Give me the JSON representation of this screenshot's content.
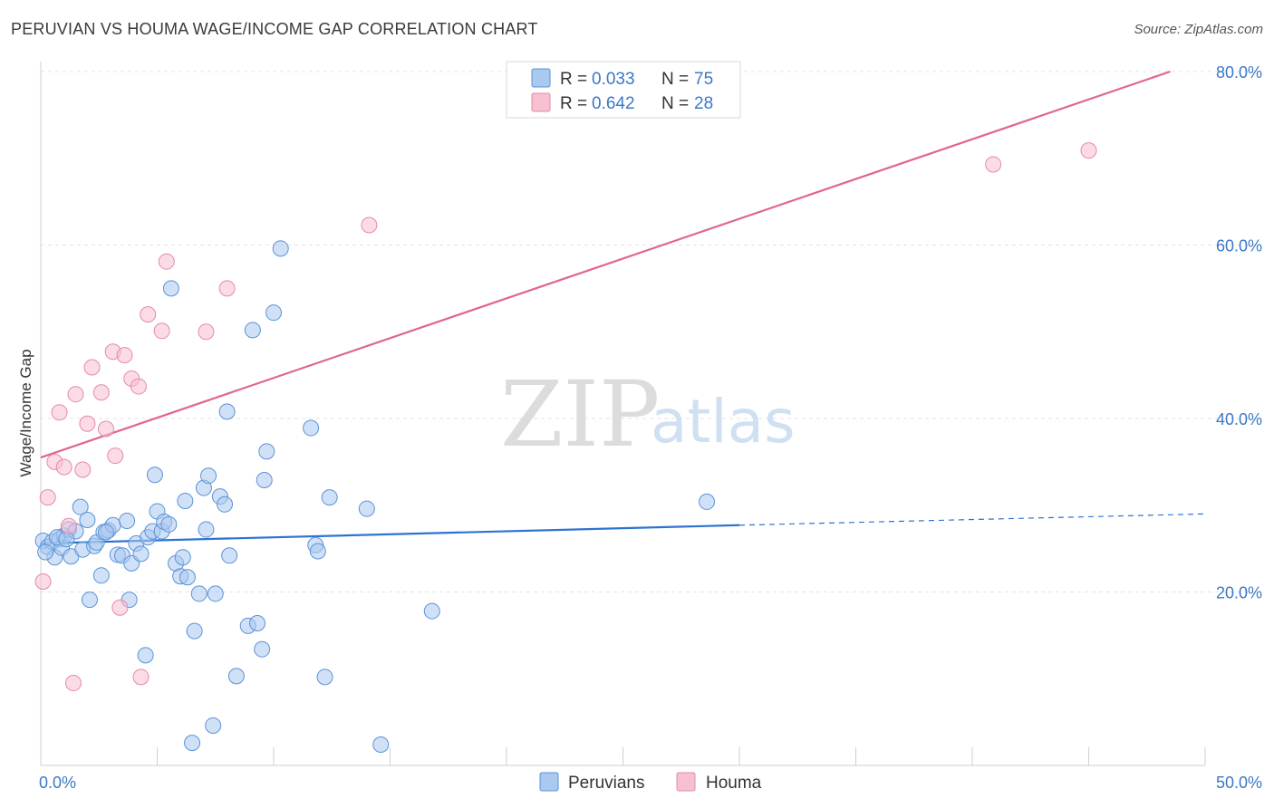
{
  "title": "PERUVIAN VS HOUMA WAGE/INCOME GAP CORRELATION CHART",
  "source": "Source: ZipAtlas.com",
  "watermark": {
    "zip": "ZIP",
    "atlas": "atlas"
  },
  "colors": {
    "peruvians_fill": "#a9c9f1",
    "peruvians_stroke": "#5b93d6",
    "peruvians_line": "#2f73d0",
    "houma_fill": "#f7c0d1",
    "houma_stroke": "#e58aa8",
    "houma_line": "#e06690",
    "tick": "#3b78c7"
  },
  "legend": {
    "entries": [
      {
        "r_label": "R =",
        "r_value": "0.033",
        "n_label": "N =",
        "n_value": "75"
      },
      {
        "r_label": "R =",
        "r_value": "0.642",
        "n_label": "N =",
        "n_value": "28"
      }
    ]
  },
  "bottom_legend": [
    "Peruvians",
    "Houma"
  ],
  "chart_data": {
    "type": "scatter",
    "title": "PERUVIAN VS HOUMA WAGE/INCOME GAP CORRELATION CHART",
    "xlabel": "",
    "ylabel": "Wage/Income Gap",
    "xlim": [
      0,
      50
    ],
    "ylim": [
      0,
      80
    ],
    "x_ticks": [
      "0.0%",
      "50.0%"
    ],
    "y_ticks": [
      "20.0%",
      "40.0%",
      "60.0%",
      "80.0%"
    ],
    "y_tick_values": [
      20,
      40,
      60,
      80
    ],
    "grid": true,
    "legend_position": "top-center",
    "series": [
      {
        "name": "Peruvians",
        "points": [
          [
            0.1,
            25.9
          ],
          [
            0.3,
            25.2
          ],
          [
            0.5,
            25.8
          ],
          [
            0.6,
            24.0
          ],
          [
            0.8,
            26.1
          ],
          [
            0.9,
            25.1
          ],
          [
            1.0,
            26.5
          ],
          [
            1.2,
            27.2
          ],
          [
            1.3,
            24.1
          ],
          [
            1.5,
            27.0
          ],
          [
            1.7,
            29.8
          ],
          [
            1.8,
            24.9
          ],
          [
            2.0,
            28.3
          ],
          [
            2.1,
            19.1
          ],
          [
            2.3,
            25.3
          ],
          [
            2.4,
            25.7
          ],
          [
            2.6,
            21.9
          ],
          [
            2.7,
            26.9
          ],
          [
            2.9,
            27.1
          ],
          [
            3.1,
            27.7
          ],
          [
            3.3,
            24.3
          ],
          [
            3.5,
            24.2
          ],
          [
            3.7,
            28.2
          ],
          [
            3.8,
            19.1
          ],
          [
            3.9,
            23.3
          ],
          [
            4.1,
            25.6
          ],
          [
            4.3,
            24.4
          ],
          [
            4.5,
            12.7
          ],
          [
            4.6,
            26.3
          ],
          [
            4.8,
            27.0
          ],
          [
            4.9,
            33.5
          ],
          [
            5.0,
            29.3
          ],
          [
            5.2,
            27.0
          ],
          [
            5.3,
            28.1
          ],
          [
            5.5,
            27.8
          ],
          [
            5.6,
            55.0
          ],
          [
            5.8,
            23.3
          ],
          [
            6.0,
            21.8
          ],
          [
            6.1,
            24.0
          ],
          [
            6.2,
            30.5
          ],
          [
            6.3,
            21.7
          ],
          [
            6.5,
            2.6
          ],
          [
            6.6,
            15.5
          ],
          [
            6.8,
            19.8
          ],
          [
            7.0,
            32.0
          ],
          [
            7.1,
            27.2
          ],
          [
            7.2,
            33.4
          ],
          [
            7.4,
            4.6
          ],
          [
            7.5,
            19.8
          ],
          [
            7.7,
            31.0
          ],
          [
            7.9,
            30.1
          ],
          [
            8.1,
            24.2
          ],
          [
            8.0,
            40.8
          ],
          [
            8.4,
            10.3
          ],
          [
            8.9,
            16.1
          ],
          [
            9.1,
            50.2
          ],
          [
            9.3,
            16.4
          ],
          [
            9.5,
            13.4
          ],
          [
            9.6,
            32.9
          ],
          [
            9.7,
            36.2
          ],
          [
            10.0,
            52.2
          ],
          [
            10.3,
            59.6
          ],
          [
            11.6,
            38.9
          ],
          [
            11.8,
            25.4
          ],
          [
            11.9,
            24.7
          ],
          [
            12.2,
            10.2
          ],
          [
            12.4,
            30.9
          ],
          [
            14.0,
            29.6
          ],
          [
            14.6,
            2.4
          ],
          [
            16.8,
            17.8
          ],
          [
            28.6,
            30.4
          ],
          [
            0.2,
            24.6
          ],
          [
            0.7,
            26.3
          ],
          [
            1.1,
            26.1
          ],
          [
            2.8,
            26.9
          ]
        ]
      },
      {
        "name": "Houma",
        "points": [
          [
            0.1,
            21.2
          ],
          [
            0.3,
            30.9
          ],
          [
            0.6,
            35.0
          ],
          [
            0.8,
            40.7
          ],
          [
            1.0,
            34.4
          ],
          [
            1.2,
            27.6
          ],
          [
            1.5,
            42.8
          ],
          [
            1.8,
            34.1
          ],
          [
            2.0,
            39.4
          ],
          [
            2.2,
            45.9
          ],
          [
            2.6,
            43.0
          ],
          [
            2.8,
            38.8
          ],
          [
            3.1,
            47.7
          ],
          [
            3.2,
            35.7
          ],
          [
            3.4,
            18.2
          ],
          [
            3.6,
            47.3
          ],
          [
            3.9,
            44.6
          ],
          [
            4.2,
            43.7
          ],
          [
            4.3,
            10.2
          ],
          [
            4.6,
            52.0
          ],
          [
            5.2,
            50.1
          ],
          [
            5.4,
            58.1
          ],
          [
            7.1,
            50.0
          ],
          [
            8.0,
            55.0
          ],
          [
            14.1,
            62.3
          ],
          [
            40.9,
            69.3
          ],
          [
            45.0,
            70.9
          ],
          [
            1.4,
            9.5
          ]
        ]
      }
    ],
    "trendlines": [
      {
        "series": "Peruvians",
        "solid": [
          [
            0,
            25.6
          ],
          [
            30,
            27.7
          ]
        ],
        "dashed": [
          [
            30,
            27.7
          ],
          [
            50,
            29.0
          ]
        ]
      },
      {
        "series": "Houma",
        "solid": [
          [
            0,
            35.5
          ],
          [
            48.5,
            80.0
          ]
        ]
      }
    ]
  }
}
